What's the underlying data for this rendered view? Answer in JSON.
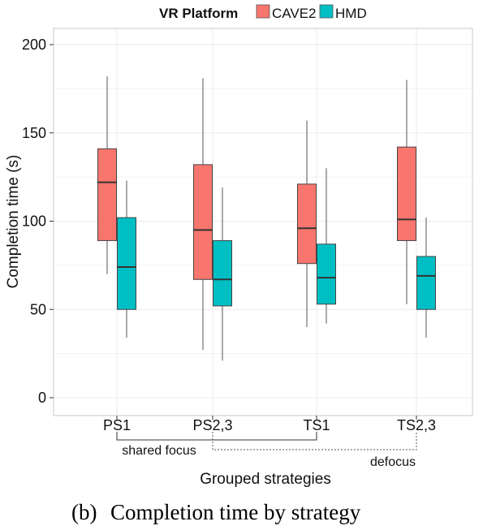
{
  "legend": {
    "title": "VR Platform",
    "items": [
      "CAVE2",
      "HMD"
    ]
  },
  "caption": {
    "label": "(b)",
    "text": "Completion time by strategy"
  },
  "groups": {
    "shared": "shared focus",
    "defocus": "defocus"
  },
  "colors": {
    "CAVE2": "#F8766D",
    "HMD": "#00BFC4",
    "grid": "#EBEBEB",
    "median": "#333333"
  },
  "chart_data": {
    "type": "boxplot",
    "title": "",
    "xlabel": "Grouped strategies",
    "ylabel": "Completion time (s)",
    "ylim": [
      0,
      200
    ],
    "yticks": [
      0,
      50,
      100,
      150,
      200
    ],
    "grid": true,
    "legend_position": "top",
    "categories": [
      "PS1",
      "PS2,3",
      "TS1",
      "TS2,3"
    ],
    "series": [
      {
        "name": "CAVE2",
        "boxes": [
          {
            "min": 70,
            "q1": 89,
            "median": 122,
            "q3": 141,
            "max": 182
          },
          {
            "min": 27,
            "q1": 67,
            "median": 95,
            "q3": 132,
            "max": 181
          },
          {
            "min": 40,
            "q1": 76,
            "median": 96,
            "q3": 121,
            "max": 157
          },
          {
            "min": 53,
            "q1": 89,
            "median": 101,
            "q3": 142,
            "max": 180
          }
        ]
      },
      {
        "name": "HMD",
        "boxes": [
          {
            "min": 34,
            "q1": 50,
            "median": 74,
            "q3": 102,
            "max": 123
          },
          {
            "min": 21,
            "q1": 52,
            "median": 67,
            "q3": 89,
            "max": 119
          },
          {
            "min": 42,
            "q1": 53,
            "median": 68,
            "q3": 87,
            "max": 130
          },
          {
            "min": 34,
            "q1": 50,
            "median": 69,
            "q3": 80,
            "max": 102
          }
        ]
      }
    ]
  }
}
